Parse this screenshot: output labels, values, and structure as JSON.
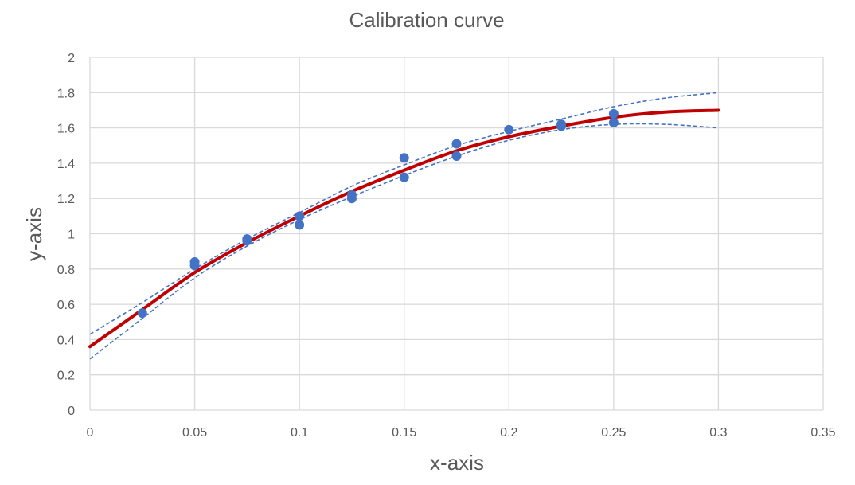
{
  "chart_data": {
    "type": "scatter",
    "title": "Calibration curve",
    "xlabel": "x-axis",
    "ylabel": "y-axis",
    "xlim": [
      0,
      0.35
    ],
    "ylim": [
      0,
      2
    ],
    "xticks": [
      0,
      0.05,
      0.1,
      0.15,
      0.2,
      0.25,
      0.3,
      0.35
    ],
    "xtick_labels": [
      "0",
      "0.05",
      "0.1",
      "0.15",
      "0.2",
      "0.25",
      "0.3",
      "0.35"
    ],
    "yticks": [
      0,
      0.2,
      0.4,
      0.6,
      0.8,
      1,
      1.2,
      1.4,
      1.6,
      1.8,
      2
    ],
    "ytick_labels": [
      "0",
      "0.2",
      "0.4",
      "0.6",
      "0.8",
      "1",
      "1.2",
      "1.4",
      "1.6",
      "1.8",
      "2"
    ],
    "grid": true,
    "legend": "none",
    "series": [
      {
        "kind": "scatter",
        "color": "#4472C4",
        "points": [
          [
            0.025,
            0.55
          ],
          [
            0.05,
            0.84
          ],
          [
            0.05,
            0.82
          ],
          [
            0.075,
            0.97
          ],
          [
            0.075,
            0.96
          ],
          [
            0.1,
            1.1
          ],
          [
            0.1,
            1.05
          ],
          [
            0.125,
            1.22
          ],
          [
            0.125,
            1.2
          ],
          [
            0.15,
            1.43
          ],
          [
            0.15,
            1.32
          ],
          [
            0.175,
            1.51
          ],
          [
            0.175,
            1.44
          ],
          [
            0.2,
            1.59
          ],
          [
            0.225,
            1.62
          ],
          [
            0.225,
            1.61
          ],
          [
            0.25,
            1.68
          ],
          [
            0.25,
            1.63
          ]
        ]
      },
      {
        "kind": "fit",
        "color": "#C00000",
        "style": "solid",
        "points": [
          [
            0,
            0.36
          ],
          [
            0.025,
            0.57
          ],
          [
            0.05,
            0.78
          ],
          [
            0.075,
            0.95
          ],
          [
            0.1,
            1.1
          ],
          [
            0.125,
            1.24
          ],
          [
            0.15,
            1.36
          ],
          [
            0.175,
            1.47
          ],
          [
            0.2,
            1.55
          ],
          [
            0.225,
            1.61
          ],
          [
            0.25,
            1.66
          ],
          [
            0.275,
            1.69
          ],
          [
            0.3,
            1.7
          ]
        ]
      },
      {
        "kind": "upper-band",
        "color": "#4472C4",
        "style": "dashed",
        "points": [
          [
            0,
            0.43
          ],
          [
            0.025,
            0.61
          ],
          [
            0.05,
            0.8
          ],
          [
            0.075,
            0.97
          ],
          [
            0.1,
            1.12
          ],
          [
            0.125,
            1.27
          ],
          [
            0.15,
            1.39
          ],
          [
            0.175,
            1.5
          ],
          [
            0.2,
            1.58
          ],
          [
            0.225,
            1.65
          ],
          [
            0.25,
            1.72
          ],
          [
            0.275,
            1.77
          ],
          [
            0.3,
            1.8
          ]
        ]
      },
      {
        "kind": "lower-band",
        "color": "#4472C4",
        "style": "dashed",
        "points": [
          [
            0,
            0.29
          ],
          [
            0.025,
            0.52
          ],
          [
            0.05,
            0.75
          ],
          [
            0.075,
            0.93
          ],
          [
            0.1,
            1.08
          ],
          [
            0.125,
            1.21
          ],
          [
            0.15,
            1.33
          ],
          [
            0.175,
            1.44
          ],
          [
            0.2,
            1.53
          ],
          [
            0.225,
            1.59
          ],
          [
            0.25,
            1.62
          ],
          [
            0.275,
            1.62
          ],
          [
            0.3,
            1.6
          ]
        ]
      }
    ]
  }
}
